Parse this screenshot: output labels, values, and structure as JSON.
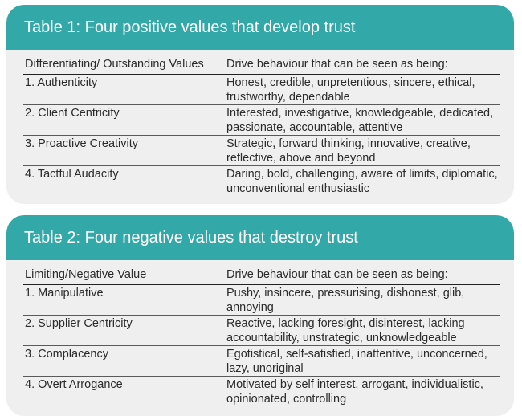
{
  "table1": {
    "title": "Table 1: Four positive values that develop trust",
    "headers": [
      "Differentiating/ Outstanding Values",
      "Drive behaviour that can be seen as being:"
    ],
    "rows": [
      {
        "value": "1. Authenticity",
        "behaviour": "Honest, credible, unpretentious, sincere, ethical, trustworthy, dependable"
      },
      {
        "value": "2. Client Centricity",
        "behaviour": "Interested, investigative, knowledgeable, dedicated, passionate, accountable, attentive"
      },
      {
        "value": "3. Proactive Creativity",
        "behaviour": "Strategic, forward thinking, innovative, creative, reflective, above and beyond"
      },
      {
        "value": "4. Tactful Audacity",
        "behaviour": "Daring, bold, challenging, aware of limits, diplomatic, unconventional enthusiastic"
      }
    ]
  },
  "table2": {
    "title": "Table 2: Four negative values that destroy trust",
    "headers": [
      "Limiting/Negative Value",
      "Drive behaviour that can be seen as being:"
    ],
    "rows": [
      {
        "value": "1. Manipulative",
        "behaviour": "Pushy, insincere, pressurising, dishonest, glib, annoying"
      },
      {
        "value": "2. Supplier Centricity",
        "behaviour": "Reactive, lacking foresight, disinterest, lacking accountability, unstrategic, unknowledgeable"
      },
      {
        "value": "3. Complacency",
        "behaviour": "Egotistical, self-satisfied, inattentive, unconcerned, lazy, unoriginal"
      },
      {
        "value": "4. Overt Arrogance",
        "behaviour": "Motivated by self interest, arrogant, individualistic, opinionated, controlling"
      }
    ]
  },
  "colors": {
    "header_bg": "#33a8a8",
    "card_bg": "#efefef"
  }
}
